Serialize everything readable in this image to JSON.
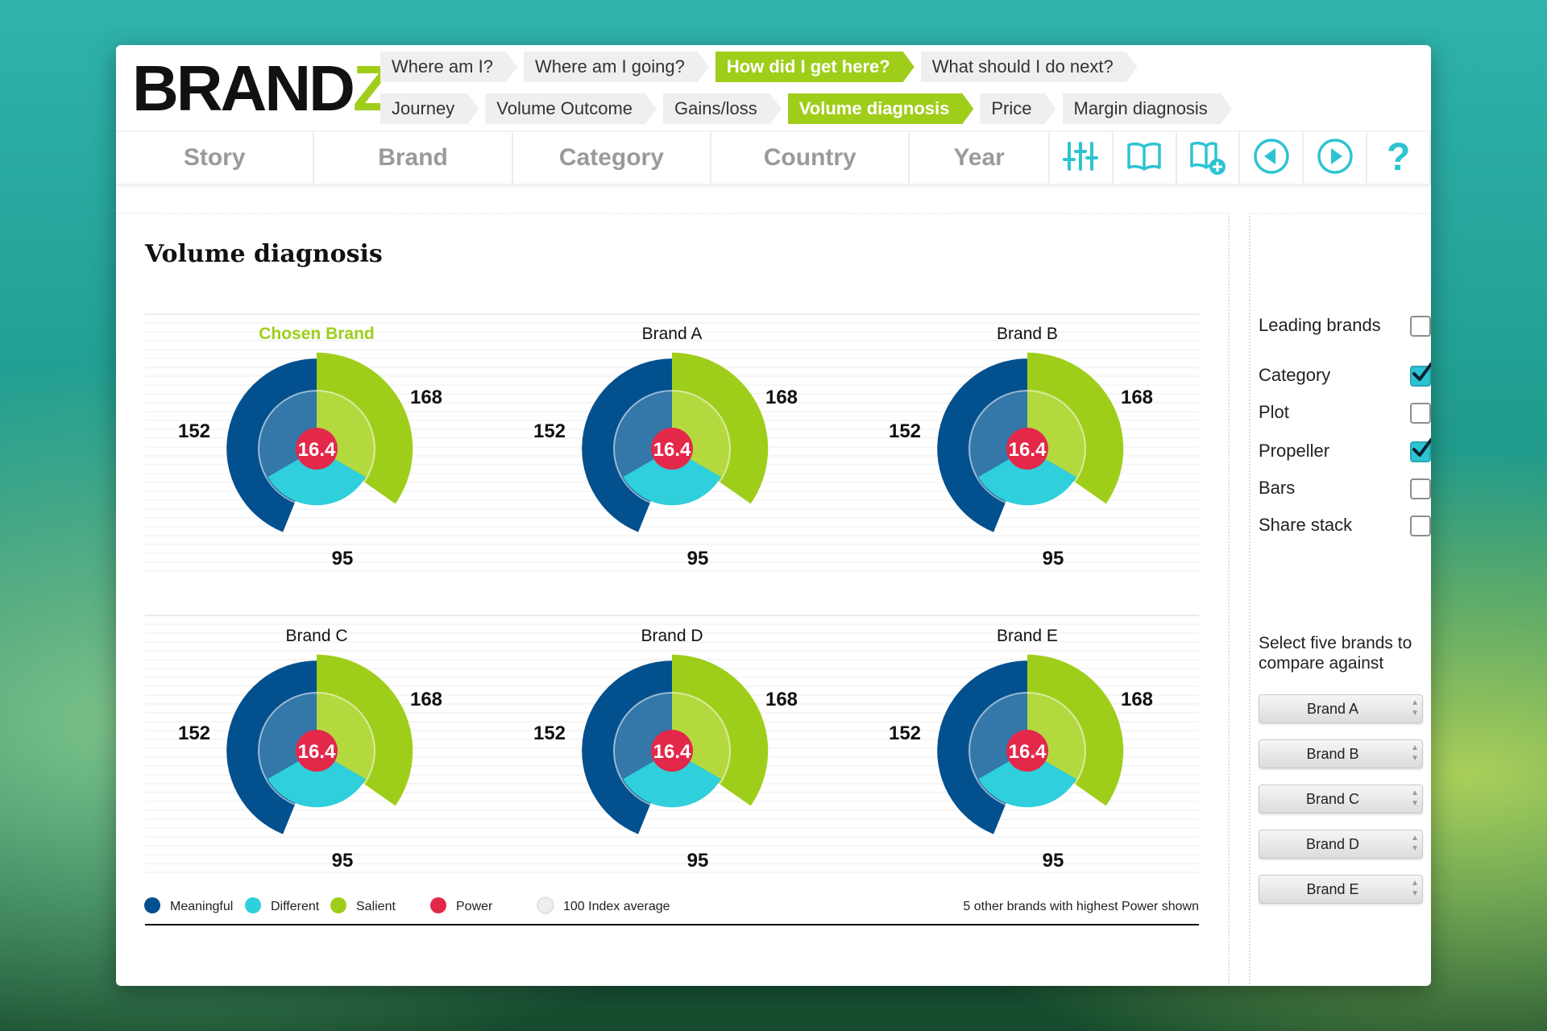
{
  "app": {
    "logo_main": "BRAND",
    "logo_accent": "Z"
  },
  "breadcrumbs": {
    "row1": [
      "Where am I?",
      "Where am I going?",
      "How did I get here?",
      "What should I do next?"
    ],
    "row1_active": 2,
    "row2": [
      "Journey",
      "Volume Outcome",
      "Gains/loss",
      "Volume diagnosis",
      "Price",
      "Margin diagnosis"
    ],
    "row2_active": 3
  },
  "nav": {
    "tabs": [
      "Story",
      "Brand",
      "Category",
      "Country",
      "Year"
    ],
    "icons": [
      "filter-sliders-icon",
      "book-icon",
      "add-book-icon",
      "previous-icon",
      "next-icon",
      "help-icon"
    ],
    "help_label": "?"
  },
  "page": {
    "title": "Volume diagnosis"
  },
  "colors": {
    "meaningful": "#03508f",
    "meaningful_inner": "#3477a9",
    "different": "#2fcfdb",
    "salient": "#9fce1a",
    "salient_inner": "#b3d93e",
    "power": "#e3284a",
    "index_average": "#eeeeee",
    "accent_green": "#9fce1a",
    "accent_cyan": "#2cc4d2"
  },
  "chart_data": {
    "type": "propeller",
    "legend": [
      {
        "label": "Meaningful",
        "color": "#03508f"
      },
      {
        "label": "Different",
        "color": "#2fcfdb"
      },
      {
        "label": "Salient",
        "color": "#9fce1a"
      },
      {
        "label": "Power",
        "color": "#e3284a"
      },
      {
        "label": "100 Index average",
        "color": "#eeeeee"
      }
    ],
    "note": "5 other brands with highest Power shown",
    "index_average": 100,
    "brands": [
      {
        "name": "Chosen Brand",
        "highlight": true,
        "meaningful": 152,
        "different": 95,
        "salient": 168,
        "power": 16.4
      },
      {
        "name": "Brand A",
        "highlight": false,
        "meaningful": 152,
        "different": 95,
        "salient": 168,
        "power": 16.4
      },
      {
        "name": "Brand B",
        "highlight": false,
        "meaningful": 152,
        "different": 95,
        "salient": 168,
        "power": 16.4
      },
      {
        "name": "Brand C",
        "highlight": false,
        "meaningful": 152,
        "different": 95,
        "salient": 168,
        "power": 16.4
      },
      {
        "name": "Brand D",
        "highlight": false,
        "meaningful": 152,
        "different": 95,
        "salient": 168,
        "power": 16.4
      },
      {
        "name": "Brand E",
        "highlight": false,
        "meaningful": 152,
        "different": 95,
        "salient": 168,
        "power": 16.4
      }
    ]
  },
  "sidebar": {
    "options": [
      {
        "label": "Leading brands",
        "checked": false
      },
      {
        "label": "Category",
        "checked": true
      },
      {
        "label": "Plot",
        "checked": false
      },
      {
        "label": "Propeller",
        "checked": true
      },
      {
        "label": "Bars",
        "checked": false
      },
      {
        "label": "Share stack",
        "checked": false
      }
    ],
    "select_title": "Select five brands to compare against",
    "selects": [
      "Brand A",
      "Brand B",
      "Brand C",
      "Brand D",
      "Brand E"
    ]
  }
}
